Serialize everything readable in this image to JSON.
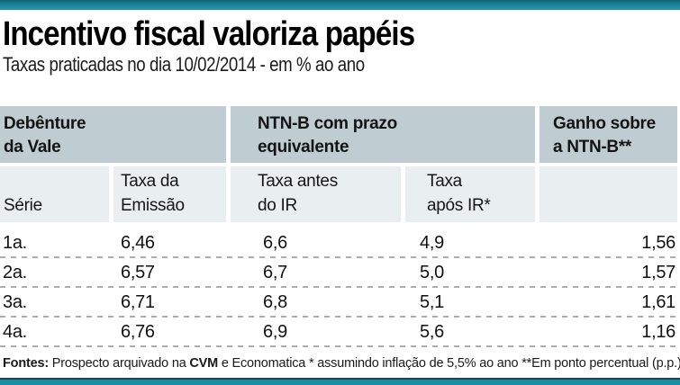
{
  "page": {
    "title": "Incentivo fiscal valoriza papéis",
    "subtitle": "Taxas praticadas no dia 10/02/2014 - em % ao ano"
  },
  "table": {
    "group_headers": {
      "debenture": "Debênture\nda Vale",
      "ntnb": "NTN-B com prazo\nequivalente",
      "ganho": "Ganho sobre\na NTN-B**"
    },
    "sub_headers": {
      "serie": "Série",
      "taxa_emissao": "Taxa da\nEmissão",
      "taxa_antes_ir": "Taxa antes\ndo IR",
      "taxa_apos_ir": "Taxa\napós IR*"
    },
    "rows": [
      {
        "serie": "1a.",
        "taxa_emissao": "6,46",
        "taxa_antes_ir": "6,6",
        "taxa_apos_ir": "4,9",
        "ganho": "1,56"
      },
      {
        "serie": "2a.",
        "taxa_emissao": "6,57",
        "taxa_antes_ir": "6,7",
        "taxa_apos_ir": "5,0",
        "ganho": "1,57"
      },
      {
        "serie": "3a.",
        "taxa_emissao": "6,71",
        "taxa_antes_ir": "6,8",
        "taxa_apos_ir": "5,1",
        "ganho": "1,61"
      },
      {
        "serie": "4a.",
        "taxa_emissao": "6,76",
        "taxa_antes_ir": "6,9",
        "taxa_apos_ir": "5,6",
        "ganho": "1,16"
      }
    ]
  },
  "footer": {
    "label": "Fontes:",
    "text1": " Prospecto arquivado na ",
    "bold1": "CVM",
    "text2": " e Economatica  * assumindo inflação de 5,5% ao ano **Em ponto percentual (p.p.)"
  },
  "colors": {
    "accent_teal": "#1f8ca4",
    "group_header_bg": "#bfcdd3",
    "sub_header_bg": "#e9eef0",
    "dash_gray": "#a9aeae"
  },
  "chart_data": {
    "type": "table",
    "title": "Incentivo fiscal valoriza papéis",
    "subtitle": "Taxas praticadas no dia 10/02/2014 - em % ao ano",
    "column_groups": [
      "Debênture da Vale",
      "NTN-B com prazo equivalente",
      "Ganho sobre a NTN-B**"
    ],
    "columns": [
      "Série",
      "Taxa da Emissão",
      "Taxa antes do IR",
      "Taxa após IR*",
      "Ganho sobre a NTN-B (p.p.)"
    ],
    "rows": [
      [
        "1a.",
        6.46,
        6.6,
        4.9,
        1.56
      ],
      [
        "2a.",
        6.57,
        6.7,
        5.0,
        1.57
      ],
      [
        "3a.",
        6.71,
        6.8,
        5.1,
        1.61
      ],
      [
        "4a.",
        6.76,
        6.9,
        5.6,
        1.16
      ]
    ],
    "footnote": "Fontes: Prospecto arquivado na CVM e Economatica * assumindo inflação de 5,5% ao ano **Em ponto percentual (p.p.)"
  }
}
